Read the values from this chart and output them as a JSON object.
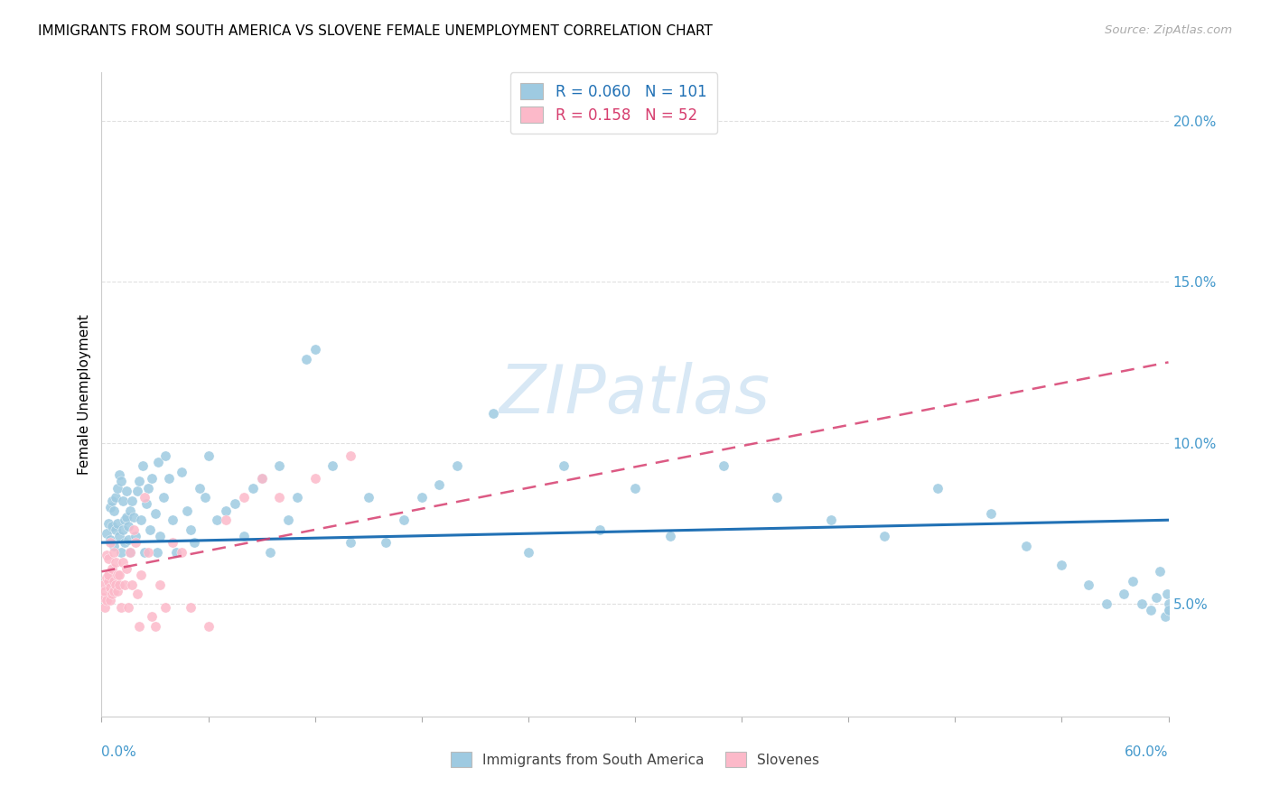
{
  "title": "IMMIGRANTS FROM SOUTH AMERICA VS SLOVENE FEMALE UNEMPLOYMENT CORRELATION CHART",
  "source": "Source: ZipAtlas.com",
  "ylabel": "Female Unemployment",
  "R1": 0.06,
  "N1": 101,
  "R2": 0.158,
  "N2": 52,
  "color_blue": "#9ecae1",
  "color_pink": "#fcb9c9",
  "color_blue_dark": "#2171b5",
  "color_pink_dark": "#d63d6e",
  "color_axis_label": "#4499cc",
  "watermark_color": "#d8e8f5",
  "watermark": "ZIPatlas",
  "xlim": [
    0.0,
    0.6
  ],
  "ylim": [
    0.015,
    0.215
  ],
  "legend1_label": "Immigrants from South America",
  "legend2_label": "Slovenes",
  "blue_trend_x": [
    0.0,
    0.6
  ],
  "blue_trend_y": [
    0.069,
    0.076
  ],
  "pink_trend_x": [
    0.0,
    0.6
  ],
  "pink_trend_y": [
    0.06,
    0.125
  ],
  "blue_x": [
    0.003,
    0.004,
    0.005,
    0.005,
    0.006,
    0.006,
    0.007,
    0.007,
    0.008,
    0.008,
    0.009,
    0.009,
    0.01,
    0.01,
    0.011,
    0.011,
    0.012,
    0.012,
    0.013,
    0.013,
    0.014,
    0.014,
    0.015,
    0.015,
    0.016,
    0.016,
    0.017,
    0.018,
    0.019,
    0.02,
    0.021,
    0.022,
    0.023,
    0.024,
    0.025,
    0.026,
    0.027,
    0.028,
    0.03,
    0.031,
    0.032,
    0.033,
    0.035,
    0.036,
    0.038,
    0.04,
    0.042,
    0.045,
    0.048,
    0.05,
    0.052,
    0.055,
    0.058,
    0.06,
    0.065,
    0.07,
    0.075,
    0.08,
    0.085,
    0.09,
    0.095,
    0.1,
    0.105,
    0.11,
    0.115,
    0.12,
    0.13,
    0.14,
    0.15,
    0.16,
    0.17,
    0.18,
    0.19,
    0.2,
    0.22,
    0.24,
    0.26,
    0.28,
    0.3,
    0.32,
    0.35,
    0.38,
    0.41,
    0.44,
    0.47,
    0.5,
    0.52,
    0.54,
    0.555,
    0.565,
    0.575,
    0.58,
    0.585,
    0.59,
    0.593,
    0.595,
    0.598,
    0.599,
    0.6,
    0.6,
    0.6
  ],
  "blue_y": [
    0.072,
    0.075,
    0.07,
    0.08,
    0.074,
    0.082,
    0.068,
    0.079,
    0.073,
    0.083,
    0.075,
    0.086,
    0.071,
    0.09,
    0.066,
    0.088,
    0.073,
    0.082,
    0.076,
    0.069,
    0.077,
    0.085,
    0.074,
    0.07,
    0.079,
    0.066,
    0.082,
    0.077,
    0.071,
    0.085,
    0.088,
    0.076,
    0.093,
    0.066,
    0.081,
    0.086,
    0.073,
    0.089,
    0.078,
    0.066,
    0.094,
    0.071,
    0.083,
    0.096,
    0.089,
    0.076,
    0.066,
    0.091,
    0.079,
    0.073,
    0.069,
    0.086,
    0.083,
    0.096,
    0.076,
    0.079,
    0.081,
    0.071,
    0.086,
    0.089,
    0.066,
    0.093,
    0.076,
    0.083,
    0.126,
    0.129,
    0.093,
    0.069,
    0.083,
    0.069,
    0.076,
    0.083,
    0.087,
    0.093,
    0.109,
    0.066,
    0.093,
    0.073,
    0.086,
    0.071,
    0.093,
    0.083,
    0.076,
    0.071,
    0.086,
    0.078,
    0.068,
    0.062,
    0.056,
    0.05,
    0.053,
    0.057,
    0.05,
    0.048,
    0.052,
    0.06,
    0.046,
    0.053,
    0.048,
    0.05,
    0.048
  ],
  "pink_x": [
    0.001,
    0.001,
    0.002,
    0.002,
    0.003,
    0.003,
    0.003,
    0.004,
    0.004,
    0.004,
    0.005,
    0.005,
    0.005,
    0.006,
    0.006,
    0.007,
    0.007,
    0.007,
    0.008,
    0.008,
    0.009,
    0.009,
    0.01,
    0.01,
    0.011,
    0.012,
    0.013,
    0.014,
    0.015,
    0.016,
    0.017,
    0.018,
    0.019,
    0.02,
    0.021,
    0.022,
    0.024,
    0.026,
    0.028,
    0.03,
    0.033,
    0.036,
    0.04,
    0.045,
    0.05,
    0.06,
    0.07,
    0.08,
    0.09,
    0.1,
    0.12,
    0.14
  ],
  "pink_y": [
    0.052,
    0.056,
    0.054,
    0.049,
    0.058,
    0.051,
    0.065,
    0.064,
    0.057,
    0.059,
    0.055,
    0.069,
    0.051,
    0.053,
    0.061,
    0.066,
    0.057,
    0.054,
    0.056,
    0.063,
    0.059,
    0.054,
    0.056,
    0.059,
    0.049,
    0.063,
    0.056,
    0.061,
    0.049,
    0.066,
    0.056,
    0.073,
    0.069,
    0.053,
    0.043,
    0.059,
    0.083,
    0.066,
    0.046,
    0.043,
    0.056,
    0.049,
    0.069,
    0.066,
    0.049,
    0.043,
    0.076,
    0.083,
    0.089,
    0.083,
    0.089,
    0.096
  ]
}
